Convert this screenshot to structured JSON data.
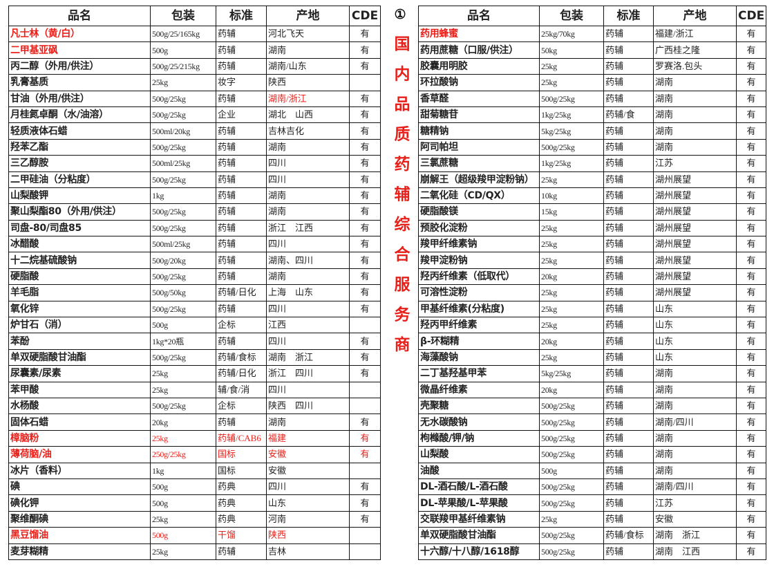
{
  "left_table": {
    "header": [
      "品名",
      "包装",
      "标准",
      "产地",
      "CDE"
    ],
    "rows": [
      {
        "cells": [
          "凡士林（黄/白）",
          "500g/25/165kg",
          "药辅",
          "河北飞天",
          "有"
        ],
        "red": [
          0
        ]
      },
      {
        "cells": [
          "二甲基亚砜",
          "500g",
          "药辅",
          "湖南",
          "有"
        ],
        "red": [
          0
        ]
      },
      {
        "cells": [
          "丙二醇（外用/供注）",
          "500g/25/215kg",
          "药辅",
          "湖南/山东",
          "有"
        ]
      },
      {
        "cells": [
          "乳膏基质",
          "25kg",
          "妆字",
          "陕西",
          null
        ]
      },
      {
        "cells": [
          "甘油（外用/供注）",
          "500g/25kg",
          "药辅",
          "湖南/浙江",
          "有"
        ],
        "red": [
          3
        ]
      },
      {
        "cells": [
          "月桂氮卓酮（水/油溶）",
          "500g/25kg",
          "企业",
          "湖北　山西",
          "有"
        ]
      },
      {
        "cells": [
          "轻质液体石蜡",
          "500ml/20kg",
          "药辅",
          "吉林吉化",
          "有"
        ]
      },
      {
        "cells": [
          "羟苯乙酯",
          "500g/25kg",
          "药辅",
          "湖南",
          "有"
        ]
      },
      {
        "cells": [
          "三乙醇胺",
          "500ml/25kg",
          "药辅",
          "四川",
          "有"
        ]
      },
      {
        "cells": [
          "二甲硅油（分粘度）",
          "500g/25kg",
          "药辅",
          "四川",
          "有"
        ]
      },
      {
        "cells": [
          "山梨酸钾",
          "1kg",
          "药辅",
          "湖南",
          "有"
        ]
      },
      {
        "cells": [
          "聚山梨酯80（外用/供注）",
          "500g/25kg",
          "药辅",
          "湖南",
          "有"
        ]
      },
      {
        "cells": [
          "司盘-80/司盘85",
          "500g/25kg",
          "药辅",
          "浙江　江西",
          "有"
        ]
      },
      {
        "cells": [
          "冰醋酸",
          "500ml/25kg",
          "药辅",
          "四川",
          "有"
        ]
      },
      {
        "cells": [
          "十二烷基硫酸钠",
          "500g/20kg",
          "药辅",
          "湖南、四川",
          "有"
        ]
      },
      {
        "cells": [
          "硬脂酸",
          "500g/25kg",
          "药辅",
          "湖南",
          "有"
        ]
      },
      {
        "cells": [
          "羊毛脂",
          "500g/50kg",
          "药辅/日化",
          "上海　山东",
          "有"
        ]
      },
      {
        "cells": [
          "氧化锌",
          "500g/25kg",
          "药辅",
          "四川",
          "有"
        ]
      },
      {
        "cells": [
          "炉甘石（消）",
          "500g",
          "企标",
          "江西",
          null
        ]
      },
      {
        "cells": [
          "苯酚",
          "1kg*20瓶",
          "药辅",
          "四川",
          "有"
        ]
      },
      {
        "cells": [
          "单双硬脂酸甘油酯",
          "500g/25kg",
          "药辅/食标",
          "湖南　浙江",
          "有"
        ]
      },
      {
        "cells": [
          "尿囊素/尿素",
          "25kg",
          "药辅/日化",
          "浙江　四川",
          "有"
        ]
      },
      {
        "cells": [
          "苯甲酸",
          "25kg",
          "辅/食/消",
          "四川",
          null
        ]
      },
      {
        "cells": [
          "水杨酸",
          "500g/25kg",
          "企标",
          "陕西　四川",
          null
        ]
      },
      {
        "cells": [
          "固体石蜡",
          "20kg",
          "药辅",
          "湖南",
          "有"
        ]
      },
      {
        "cells": [
          "樟脑粉",
          "25kg",
          "药辅/CAB6",
          "福建",
          "有"
        ],
        "red": [
          0,
          1,
          2,
          3,
          4
        ]
      },
      {
        "cells": [
          "薄荷脑/油",
          "250g/25kg",
          "国标",
          "安徽",
          "有"
        ],
        "red": [
          0,
          1,
          2,
          3,
          4
        ]
      },
      {
        "cells": [
          "冰片（香料）",
          "1kg",
          "国标",
          "安徽",
          null
        ]
      },
      {
        "cells": [
          "碘",
          "500g",
          "药典",
          "四川",
          "有"
        ]
      },
      {
        "cells": [
          "碘化钾",
          "500g",
          "药典",
          "山东",
          "有"
        ]
      },
      {
        "cells": [
          "聚维酮碘",
          "25kg",
          "药典",
          "河南",
          "有"
        ]
      },
      {
        "cells": [
          "黑豆馏油",
          "500g",
          "干馏",
          "陕西",
          null
        ],
        "red": [
          0,
          1,
          2,
          3
        ]
      },
      {
        "cells": [
          "麦芽糊精",
          "25kg",
          "药辅",
          "吉林",
          null
        ]
      }
    ]
  },
  "side_banner": {
    "mark": "①",
    "text": "国内品质药辅综合服务商"
  },
  "right_table": {
    "header": [
      "品名",
      "包装",
      "标准",
      "产地",
      "CDE"
    ],
    "rows": [
      {
        "cells": [
          "药用蜂蜜",
          "25kg/70kg",
          "药辅",
          "福建/浙江",
          "有"
        ],
        "red": [
          0
        ]
      },
      {
        "cells": [
          "药用蔗糖（口服/供注）",
          "50kg",
          "药辅",
          "广西桂之隆",
          "有"
        ]
      },
      {
        "cells": [
          "胶囊用明胶",
          "25kg",
          "药辅",
          "罗赛洛.包头",
          "有"
        ]
      },
      {
        "cells": [
          "环拉酸钠",
          "25kg",
          "药辅",
          "湖南",
          "有"
        ]
      },
      {
        "cells": [
          "香草醛",
          "500g/25kg",
          "药辅",
          "湖南",
          "有"
        ]
      },
      {
        "cells": [
          "甜菊糖苷",
          "1kg/25kg",
          "药辅/食",
          "湖南",
          "有"
        ]
      },
      {
        "cells": [
          "糖精钠",
          "5kg/25kg",
          "药辅",
          "湖南",
          "有"
        ]
      },
      {
        "cells": [
          "阿司帕坦",
          "500g/25kg",
          "药辅",
          "湖南",
          "有"
        ]
      },
      {
        "cells": [
          "三氯蔗糖",
          "1kg/25kg",
          "药辅",
          "江苏",
          "有"
        ]
      },
      {
        "cells": [
          "崩解王（超级羧甲淀粉钠）",
          "25kg",
          "药辅",
          "湖州展望",
          "有"
        ]
      },
      {
        "cells": [
          "二氧化硅（CD/QX）",
          "10kg",
          "药辅",
          "湖州展望",
          "有"
        ]
      },
      {
        "cells": [
          "硬脂酸镁",
          "15kg",
          "药辅",
          "湖州展望",
          "有"
        ]
      },
      {
        "cells": [
          "预胶化淀粉",
          "25kg",
          "药辅",
          "湖州展望",
          "有"
        ]
      },
      {
        "cells": [
          "羧甲纤维素钠",
          "25kg",
          "药辅",
          "湖州展望",
          "有"
        ]
      },
      {
        "cells": [
          "羧甲淀粉钠",
          "25kg",
          "药辅",
          "湖州展望",
          "有"
        ]
      },
      {
        "cells": [
          "羟丙纤维素（低取代）",
          "20kg",
          "药辅",
          "湖州展望",
          "有"
        ]
      },
      {
        "cells": [
          "可溶性淀粉",
          "25kg",
          "药辅",
          "湖州展望",
          "有"
        ]
      },
      {
        "cells": [
          "甲基纤维素(分粘度)",
          "25kg",
          "药辅",
          "山东",
          "有"
        ]
      },
      {
        "cells": [
          "羟丙甲纤维素",
          "25kg",
          "药辅",
          "山东",
          "有"
        ]
      },
      {
        "cells": [
          "β-环糊精",
          "20kg",
          "药辅",
          "山东",
          "有"
        ]
      },
      {
        "cells": [
          "海藻酸钠",
          "25kg",
          "药辅",
          "山东",
          "有"
        ]
      },
      {
        "cells": [
          "二丁基羟基甲苯",
          "5kg/25kg",
          "药辅",
          "湖南",
          "有"
        ]
      },
      {
        "cells": [
          "微晶纤维素",
          "20kg",
          "药辅",
          "湖南",
          "有"
        ]
      },
      {
        "cells": [
          "壳聚糖",
          "500g/25kg",
          "药辅",
          "湖南",
          "有"
        ]
      },
      {
        "cells": [
          "无水碳酸钠",
          "500g/25kg",
          "药辅",
          "湖南/四川",
          "有"
        ]
      },
      {
        "cells": [
          "枸橼酸/钾/钠",
          "500g/25kg",
          "药辅",
          "湖南",
          "有"
        ]
      },
      {
        "cells": [
          "山梨酸",
          "500g/25kg",
          "药辅",
          "湖南",
          "有"
        ]
      },
      {
        "cells": [
          "油酸",
          "500g",
          "药辅",
          "湖南",
          "有"
        ]
      },
      {
        "cells": [
          "DL-酒石酸/L-酒石酸",
          "500g/25kg",
          "药辅",
          "湖南/四川",
          "有"
        ]
      },
      {
        "cells": [
          "DL-苹果酸/L-苹果酸",
          "500g/25kg",
          "药辅",
          "江苏",
          "有"
        ]
      },
      {
        "cells": [
          "交联羧甲基纤维素钠",
          "25kg",
          "药辅",
          "安徽",
          "有"
        ]
      },
      {
        "cells": [
          "单双硬脂酸甘油酯",
          "500g/25kg",
          "药辅/食标",
          "湖南　浙江",
          "有"
        ]
      },
      {
        "cells": [
          "十六醇/十八醇/1618醇",
          "500g/25kg",
          "药辅",
          "湖南　江西",
          "有"
        ]
      }
    ]
  }
}
